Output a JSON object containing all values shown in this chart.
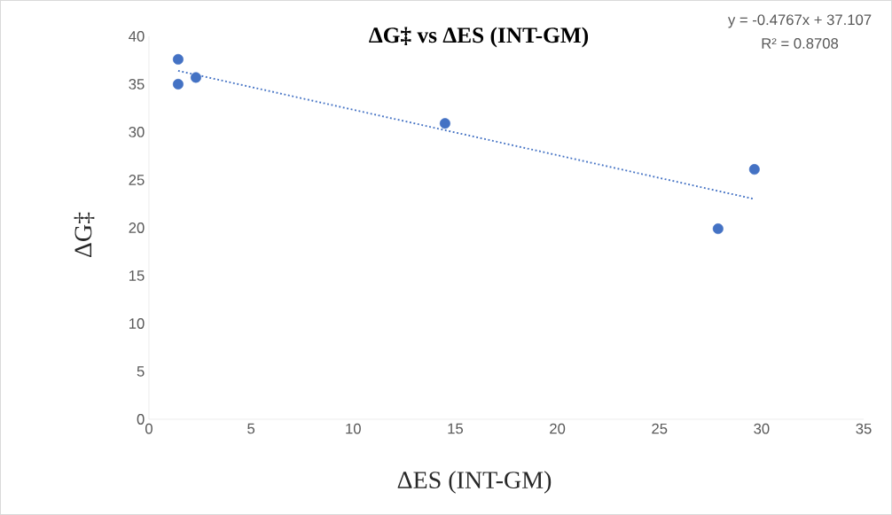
{
  "chart_data": {
    "type": "scatter",
    "title": "ΔG‡ vs ΔES (INT-GM)",
    "xlabel": "ΔES (INT-GM)",
    "ylabel": "ΔG‡",
    "series": [
      {
        "color": "#4472c4",
        "x": [
          1.43,
          1.43,
          2.3,
          14.5,
          27.87,
          29.65
        ],
        "values": [
          37.6,
          35.0,
          35.7,
          30.9,
          19.9,
          26.1
        ],
        "marker": "circle"
      },
      {
        "type": "line",
        "color": "#4472c4",
        "x": [
          1.43,
          29.65
        ],
        "values": [
          36.4,
          23.0
        ],
        "line_style": "dotted",
        "marker": "none"
      }
    ],
    "annotations": [
      "y = -0.4767x + 37.107",
      "R² = 0.8708"
    ],
    "xlim": [
      0,
      35
    ],
    "ylim": [
      0,
      40
    ],
    "xticks": [
      0,
      5,
      10,
      15,
      20,
      25,
      30,
      35
    ],
    "yticks": [
      0,
      5,
      10,
      15,
      20,
      25,
      30,
      35,
      40
    ],
    "grid": false
  }
}
